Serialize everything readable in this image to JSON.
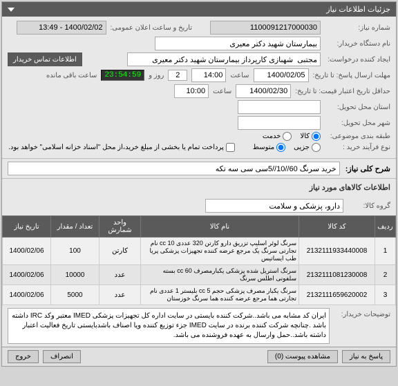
{
  "header": {
    "title": "جزئیات اطلاعات نیاز"
  },
  "form": {
    "req_number_label": "شماره نیاز:",
    "req_number": "1100091217000030",
    "announce_label": "تاریخ و ساعت اعلان عمومی:",
    "announce_value": "1400/02/02 - 13:49",
    "buyer_label": "نام دستگاه خریدار:",
    "buyer_value": "بیمارستان شهید دکتر معیری",
    "creator_label": "ایجاد کننده درخواست:",
    "creator_value": "مجتبی  شهبازی کارپرداز بیمارستان شهید دکتر معیری",
    "contact_btn": "اطلاعات تماس خریدار",
    "deadline_send_label": "مهلت ارسال پاسخ: تا تاریخ:",
    "deadline_date": "1400/02/05",
    "time_label": "ساعت",
    "deadline_time": "14:00",
    "days_left": "2",
    "days_label": "روز و",
    "countdown": "23:54:59",
    "remaining_label": "ساعت باقی مانده",
    "validity_label": "حداقل تاریخ اعتبار قیمت: تا تاریخ:",
    "validity_date": "1400/02/30",
    "validity_time": "10:00",
    "delivery_province_label": "استان محل تحویل:",
    "delivery_city_label": "شهر محل تحویل:",
    "budget_label": "طبقه بندی موضوعی:",
    "goods_radio": "کالا",
    "service_radio": "خدمت",
    "process_label": "نوع فرآیند خرید :",
    "small_radio": "جزیی",
    "medium_radio": "متوسط",
    "payment_note": "پرداخت تمام یا بخشی از مبلغ خرید،از محل \"اسناد خزانه اسلامی\" خواهد بود."
  },
  "summary": {
    "section": "شرح کلی نیاز:",
    "text": "خرید سرنگ 60//10//5سی سی سه تکه"
  },
  "items": {
    "section": "اطلاعات کالاهای مورد نیاز",
    "group_label": "گروه کالا:",
    "group_value": "دارو، پزشکی و سلامت",
    "columns": [
      "ردیف",
      "کد کالا",
      "نام کالا",
      "واحد شمارش",
      "تعداد / مقدار",
      "تاریخ نیاز"
    ],
    "rows": [
      {
        "idx": "1",
        "code": "2132111933440008",
        "name": "سرنگ لوئر اسلیپ تزریق دارو کارتن 320 عددی 10 cc نام تجارتی سرنگ یک مرجع عرضه کننده تجهیزات پزشکی پریا طب ایساتیس",
        "unit": "کارتن",
        "qty": "100",
        "date": "1400/02/06"
      },
      {
        "idx": "2",
        "code": "2132111081230008",
        "name": "سرنگ استریل شده پزشکی یکبارمصرف 60 cc بسته سلفونی اطلس سرنگ",
        "unit": "عدد",
        "qty": "10000",
        "date": "1400/02/06"
      },
      {
        "idx": "3",
        "code": "2132111659620002",
        "name": "سرنگ یکبار مصرف پزشکی حجم 5 cc بلیستر 1 عددی نام تجارتی هما مرجع عرضه کننده هما سرنگ خوزستان",
        "unit": "عدد",
        "qty": "5000",
        "date": "1400/02/06"
      }
    ]
  },
  "buyer_notes": {
    "label": "توضیحات خریدار:",
    "text": "ایران کد مشابه می باشد..شرکت کننده بایستی در سایت اداره کل تجهیزات پزشکی IMED معتبر وکد IRC داشته باشد .چنانچه شرکت کننده برنده در سایت IMED جزء توزیع کننده ویا اصناف باشدبایستی تاریخ فعالیت اعتبار داشته باشد..حمل وارسال به عهده فروشنده می باشد."
  },
  "footer": {
    "reply": "پاسخ به نیاز",
    "attachments": "مشاهده پیوست (0)",
    "cancel": "انصراف",
    "exit": "خروج"
  }
}
